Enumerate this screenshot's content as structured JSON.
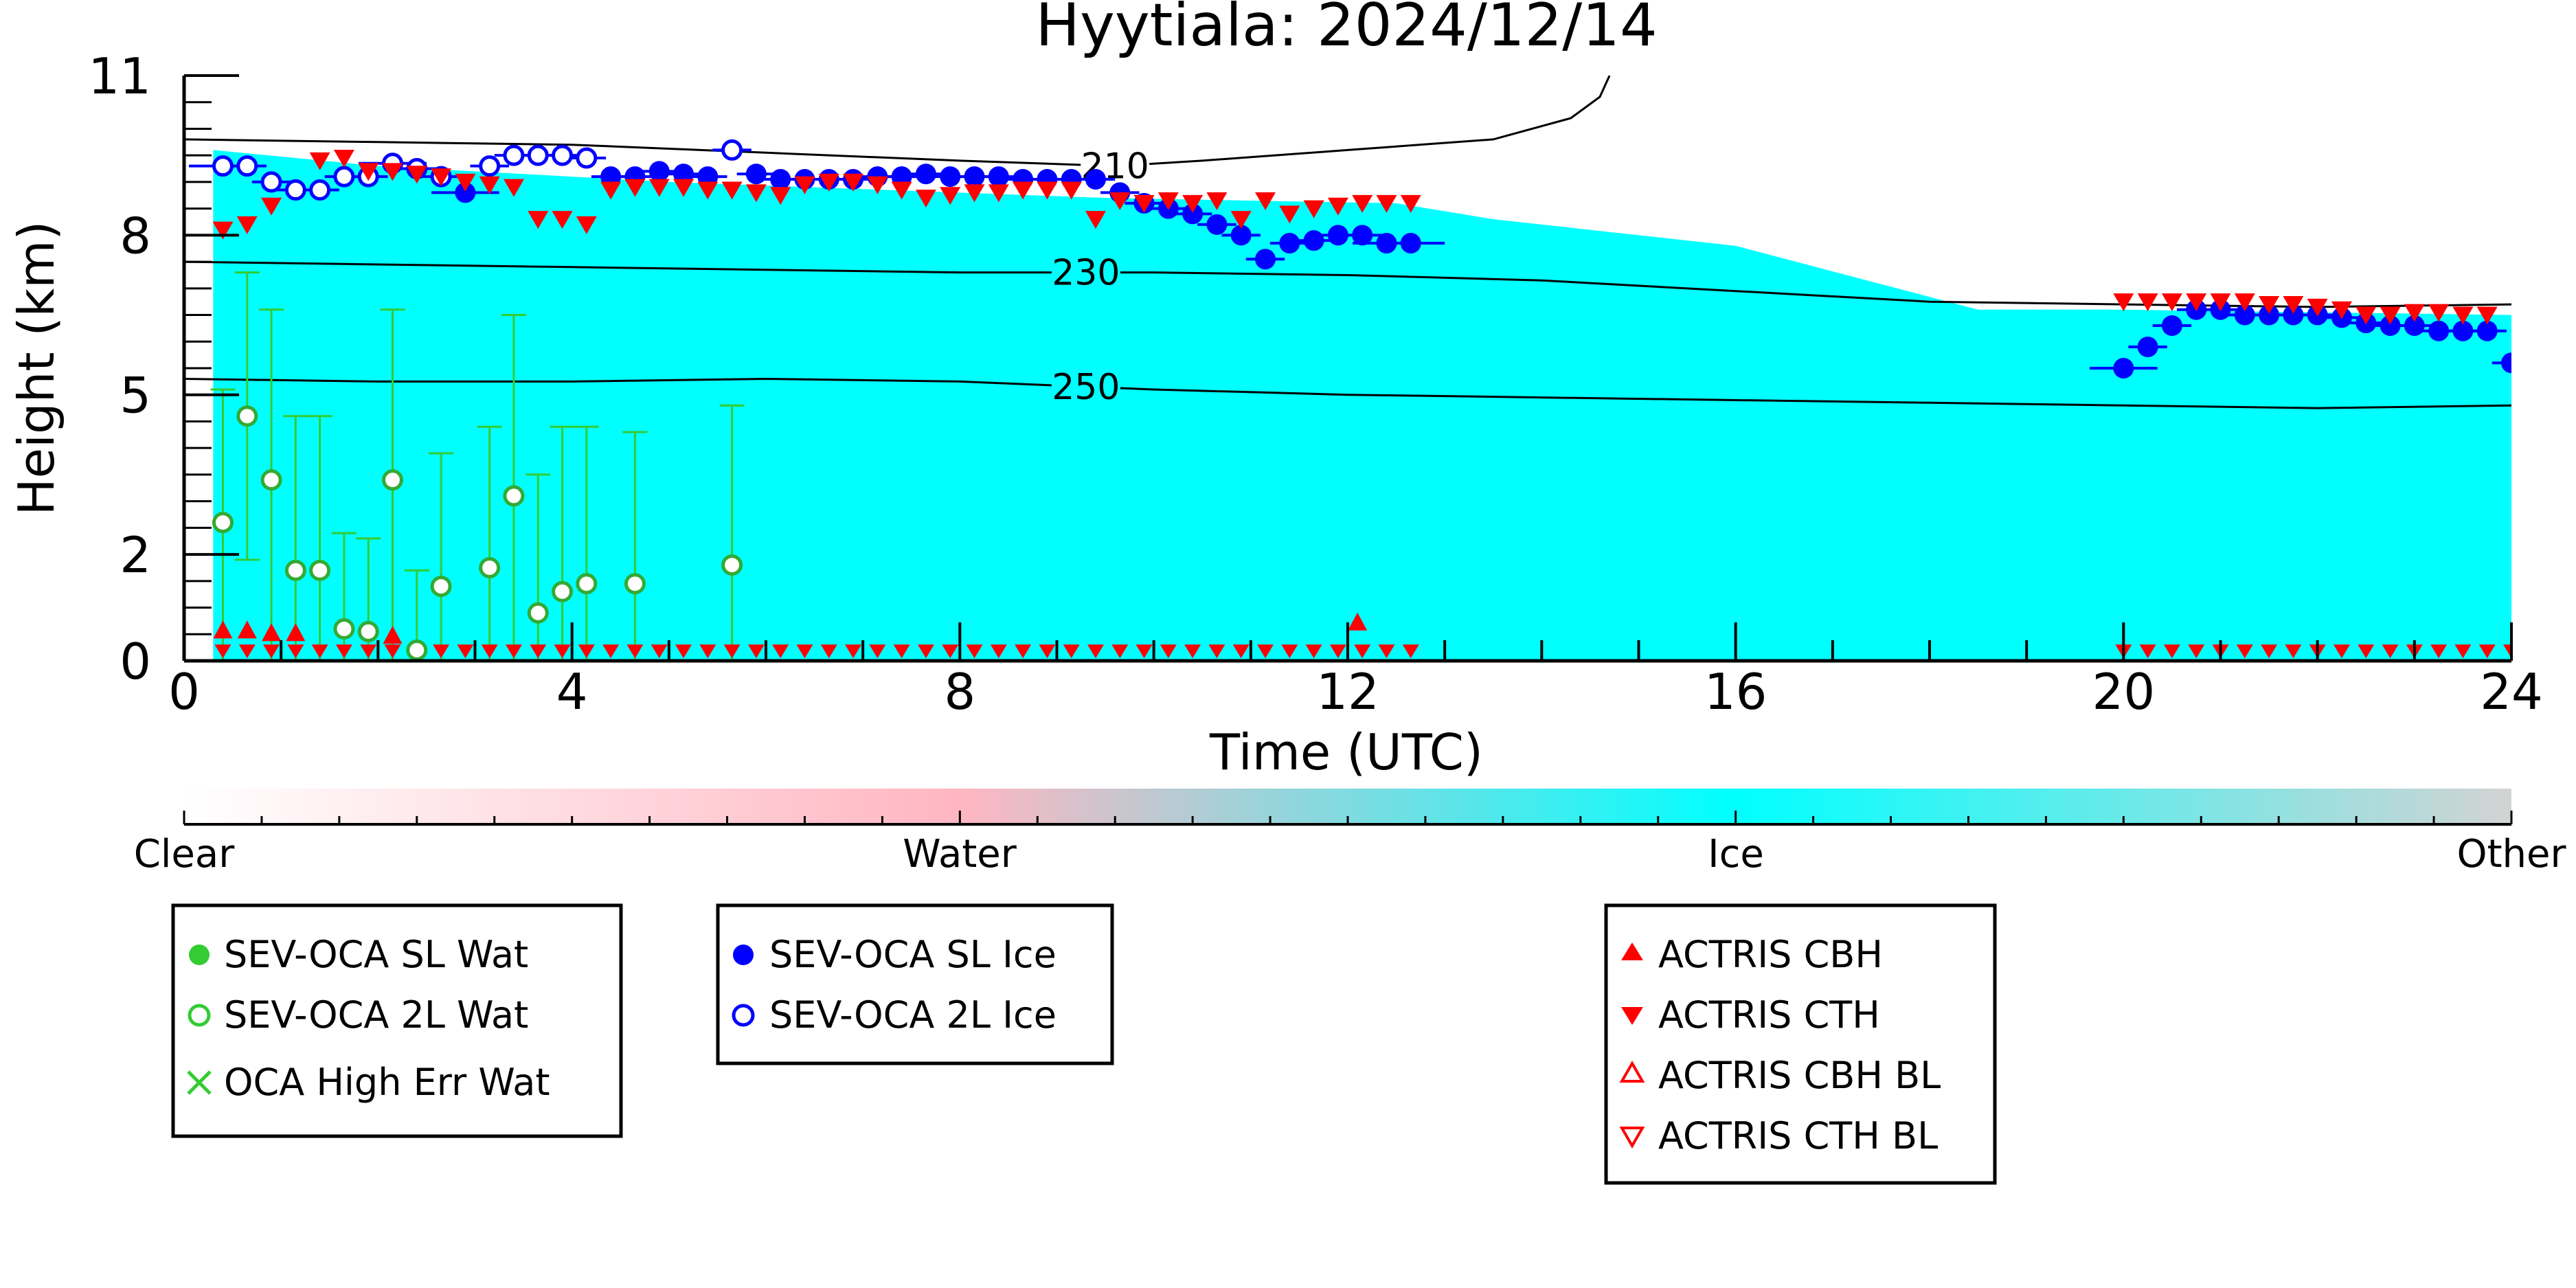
{
  "chart_data": {
    "type": "scatter",
    "title": "Hyytiala: 2024/12/14",
    "xlabel": "Time (UTC)",
    "ylabel": "Height (km)",
    "xlim": [
      0,
      24
    ],
    "ylim": [
      0,
      11
    ],
    "x_ticks": [
      "0",
      "4",
      "8",
      "12",
      "16",
      "20",
      "24"
    ],
    "y_ticks": [
      "0",
      "2",
      "5",
      "8",
      "11"
    ],
    "grid": false,
    "background_field": {
      "description": "Cloud phase classification",
      "dominant_class": "Ice",
      "ice_layer": [
        {
          "x": 0.3,
          "base": 0.0,
          "top": 9.6
        },
        {
          "x": 2.0,
          "base": 0.0,
          "top": 9.3
        },
        {
          "x": 5.0,
          "base": 0.0,
          "top": 9.0
        },
        {
          "x": 9.5,
          "base": 0.0,
          "top": 8.7
        },
        {
          "x": 12.5,
          "base": 0.0,
          "top": 8.6
        },
        {
          "x": 13.5,
          "base": 0.0,
          "top": 8.3
        },
        {
          "x": 16.0,
          "base": 0.0,
          "top": 7.8
        },
        {
          "x": 18.5,
          "base": 0.0,
          "top": 6.6
        },
        {
          "x": 20.0,
          "base": 0.0,
          "top": 6.6
        },
        {
          "x": 24.0,
          "base": 0.0,
          "top": 6.5
        }
      ]
    },
    "colorbar": {
      "labels": [
        "Clear",
        "Water",
        "Ice",
        "Other"
      ],
      "colors": [
        "#ffffff",
        "#ffb6c1",
        "#00ffff",
        "#d3d3d3"
      ]
    },
    "isotherms": [
      {
        "label": "210",
        "x": [
          0,
          2,
          4,
          6,
          8,
          9.6,
          10.5,
          12,
          13.5,
          14.3,
          14.6,
          14.7
        ],
        "y": [
          9.8,
          9.75,
          9.7,
          9.55,
          9.4,
          9.3,
          9.4,
          9.6,
          9.8,
          10.2,
          10.6,
          11.0
        ]
      },
      {
        "label": "230",
        "x": [
          0,
          2,
          4,
          6,
          8,
          10,
          12,
          14,
          16,
          18,
          20,
          22,
          24
        ],
        "y": [
          7.5,
          7.45,
          7.4,
          7.35,
          7.3,
          7.3,
          7.25,
          7.15,
          6.95,
          6.75,
          6.7,
          6.65,
          6.7
        ]
      },
      {
        "label": "250",
        "x": [
          0,
          2,
          4,
          6,
          8,
          10,
          12,
          14,
          16,
          18,
          20,
          22,
          24
        ],
        "y": [
          5.3,
          5.25,
          5.25,
          5.3,
          5.25,
          5.1,
          5.0,
          4.95,
          4.9,
          4.85,
          4.8,
          4.75,
          4.8
        ]
      }
    ],
    "series": [
      {
        "name": "SEV-OCA SL Wat",
        "marker": "filled-circle",
        "color": "#33cc33",
        "x": [],
        "y": []
      },
      {
        "name": "SEV-OCA 2L Wat",
        "marker": "open-circle",
        "color": "#33cc33",
        "x": [
          0.4,
          0.65,
          0.9,
          1.15,
          1.4,
          1.65,
          1.9,
          2.15,
          2.4,
          2.65,
          3.15,
          3.4,
          3.65,
          3.9,
          4.15,
          4.65,
          5.65
        ],
        "y": [
          2.6,
          4.6,
          3.4,
          1.7,
          1.7,
          0.6,
          0.55,
          3.4,
          0.2,
          1.4,
          1.75,
          3.1,
          0.9,
          1.3,
          1.45,
          1.45,
          1.8
        ],
        "err_low": [
          0.0,
          1.9,
          0.0,
          0.0,
          0.0,
          0.0,
          0.0,
          0.0,
          0.0,
          0.0,
          0.0,
          0.0,
          0.0,
          0.0,
          0.0,
          0.0,
          0.0
        ],
        "err_high": [
          5.1,
          7.3,
          6.6,
          4.6,
          4.6,
          2.4,
          2.3,
          6.6,
          1.7,
          3.9,
          4.4,
          6.5,
          3.5,
          4.4,
          4.4,
          4.3,
          4.8
        ]
      },
      {
        "name": "OCA High Err Wat",
        "marker": "x",
        "color": "#33cc33",
        "x": [],
        "y": []
      },
      {
        "name": "SEV-OCA SL Ice",
        "marker": "filled-circle",
        "color": "#0000ff",
        "x": [
          2.9,
          4.4,
          4.65,
          4.9,
          5.15,
          5.4,
          5.9,
          6.15,
          6.4,
          6.65,
          6.9,
          7.15,
          7.4,
          7.65,
          7.9,
          8.15,
          8.4,
          8.65,
          8.9,
          9.15,
          9.4,
          9.65,
          9.9,
          10.15,
          10.4,
          10.65,
          10.9,
          11.15,
          11.4,
          11.65,
          11.9,
          12.15,
          12.4,
          12.65,
          20.0,
          20.25,
          20.5,
          20.75,
          21.0,
          21.25,
          21.5,
          21.75,
          22.0,
          22.25,
          22.5,
          22.75,
          23.0,
          23.25,
          23.5,
          23.75,
          24.0
        ],
        "y": [
          8.8,
          9.1,
          9.1,
          9.2,
          9.15,
          9.1,
          9.15,
          9.05,
          9.05,
          9.05,
          9.05,
          9.1,
          9.1,
          9.15,
          9.1,
          9.1,
          9.1,
          9.05,
          9.05,
          9.05,
          9.05,
          8.8,
          8.6,
          8.5,
          8.4,
          8.2,
          8.0,
          7.55,
          7.85,
          7.9,
          8.0,
          8.0,
          7.85,
          7.85,
          5.5,
          5.9,
          6.3,
          6.6,
          6.6,
          6.5,
          6.5,
          6.5,
          6.5,
          6.45,
          6.35,
          6.3,
          6.3,
          6.2,
          6.2,
          6.2,
          5.6
        ],
        "x_err": [
          0.35,
          0.2,
          0.2,
          0.2,
          0.2,
          0.2,
          0.2,
          0.2,
          0.2,
          0.2,
          0.2,
          0.2,
          0.2,
          0.2,
          0.2,
          0.2,
          0.2,
          0.2,
          0.2,
          0.2,
          0.2,
          0.2,
          0.2,
          0.2,
          0.2,
          0.2,
          0.2,
          0.2,
          0.2,
          0.2,
          0.2,
          0.2,
          0.35,
          0.35,
          0.35,
          0.2,
          0.2,
          0.2,
          0.2,
          0.2,
          0.2,
          0.2,
          0.2,
          0.2,
          0.2,
          0.2,
          0.2,
          0.2,
          0.2,
          0.2,
          0.2
        ]
      },
      {
        "name": "SEV-OCA 2L Ice",
        "marker": "open-circle",
        "color": "#0000ff",
        "x": [
          0.4,
          0.65,
          0.9,
          1.15,
          1.4,
          1.65,
          1.9,
          2.15,
          2.4,
          2.65,
          3.15,
          3.4,
          3.65,
          3.9,
          4.15,
          5.65
        ],
        "y": [
          9.3,
          9.3,
          9.0,
          8.85,
          8.85,
          9.1,
          9.1,
          9.35,
          9.25,
          9.1,
          9.3,
          9.5,
          9.5,
          9.5,
          9.45,
          9.6
        ],
        "x_err": [
          0.35,
          0.2,
          0.2,
          0.2,
          0.2,
          0.2,
          0.2,
          0.35,
          0.2,
          0.2,
          0.2,
          0.2,
          0.2,
          0.2,
          0.2,
          0.2
        ]
      },
      {
        "name": "ACTRIS CBH",
        "marker": "triangle-up",
        "color": "#ff0000",
        "x": [
          0.4,
          0.65,
          0.9,
          1.15,
          2.15,
          12.1
        ],
        "y": [
          0.55,
          0.55,
          0.5,
          0.5,
          0.45,
          0.7
        ]
      },
      {
        "name": "ACTRIS CTH",
        "marker": "triangle-down",
        "color": "#ff0000",
        "x": [
          0.4,
          0.65,
          0.9,
          1.4,
          1.65,
          1.9,
          2.15,
          2.4,
          2.65,
          2.9,
          3.15,
          3.4,
          3.65,
          3.9,
          4.15,
          4.4,
          4.65,
          4.9,
          5.15,
          5.4,
          5.65,
          5.9,
          6.15,
          6.4,
          6.65,
          6.9,
          7.15,
          7.4,
          7.65,
          7.9,
          8.15,
          8.4,
          8.65,
          8.9,
          9.15,
          9.4,
          9.65,
          9.9,
          10.15,
          10.4,
          10.65,
          10.9,
          11.15,
          11.4,
          11.65,
          11.9,
          12.15,
          12.4,
          12.65,
          20.0,
          20.25,
          20.5,
          20.75,
          21.0,
          21.25,
          21.5,
          21.75,
          22.0,
          22.25,
          22.5,
          22.75,
          23.0,
          23.25,
          23.5,
          23.75
        ],
        "y": [
          8.1,
          8.2,
          8.55,
          9.4,
          9.45,
          9.2,
          9.2,
          9.15,
          9.1,
          9.0,
          8.95,
          8.9,
          8.3,
          8.3,
          8.2,
          8.85,
          8.9,
          8.9,
          8.9,
          8.85,
          8.85,
          8.8,
          8.75,
          8.95,
          9.0,
          9.0,
          8.95,
          8.85,
          8.7,
          8.75,
          8.8,
          8.8,
          8.85,
          8.85,
          8.85,
          8.3,
          8.65,
          8.6,
          8.65,
          8.6,
          8.65,
          8.3,
          8.65,
          8.4,
          8.5,
          8.55,
          8.6,
          8.6,
          8.6,
          6.75,
          6.75,
          6.75,
          6.75,
          6.75,
          6.75,
          6.7,
          6.7,
          6.65,
          6.6,
          6.5,
          6.5,
          6.55,
          6.55,
          6.5,
          6.5
        ]
      },
      {
        "name": "ACTRIS CBH BL",
        "marker": "open-triangle-up",
        "color": "#ff0000",
        "x": [],
        "y": []
      },
      {
        "name": "ACTRIS CTH BL",
        "marker": "open-triangle-down",
        "color": "#ff0000",
        "x": [],
        "y": []
      }
    ],
    "surface_cth_x": [
      0.4,
      0.65,
      0.9,
      1.15,
      1.4,
      1.65,
      1.9,
      2.15,
      2.4,
      2.65,
      2.9,
      3.15,
      3.4,
      3.65,
      3.9,
      4.15,
      4.4,
      4.65,
      4.9,
      5.15,
      5.4,
      5.65,
      5.9,
      6.15,
      6.4,
      6.65,
      6.9,
      7.15,
      7.4,
      7.65,
      7.9,
      8.15,
      8.4,
      8.65,
      8.9,
      9.15,
      9.4,
      9.65,
      9.9,
      10.15,
      10.4,
      10.65,
      10.9,
      11.15,
      11.4,
      11.65,
      11.9,
      12.15,
      12.4,
      12.65,
      20.0,
      20.25,
      20.5,
      20.75,
      21.0,
      21.25,
      21.5,
      21.75,
      22.0,
      22.25,
      22.5,
      22.75,
      23.0,
      23.25,
      23.5,
      23.75,
      24.0
    ],
    "surface_cth_y": 0.1,
    "legends": [
      {
        "entries": [
          "SEV-OCA SL Wat",
          "SEV-OCA 2L Wat",
          "OCA High Err Wat"
        ]
      },
      {
        "entries": [
          "SEV-OCA SL Ice",
          "SEV-OCA 2L Ice"
        ]
      },
      {
        "entries": [
          "ACTRIS CBH",
          "ACTRIS CTH",
          "ACTRIS CBH BL",
          "ACTRIS CTH BL"
        ]
      }
    ]
  }
}
